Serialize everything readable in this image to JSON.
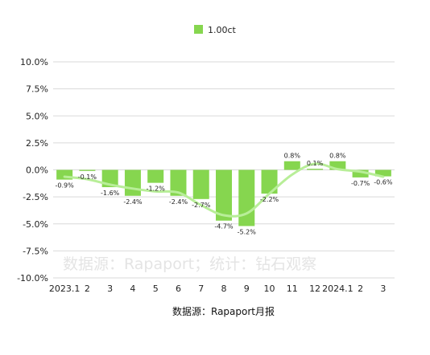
{
  "chart_data": {
    "type": "bar",
    "categories": [
      "2023.1",
      "2",
      "3",
      "4",
      "5",
      "6",
      "7",
      "8",
      "9",
      "10",
      "11",
      "12",
      "2024.1",
      "2",
      "3"
    ],
    "series": [
      {
        "name": "1.00ct",
        "values": [
          -0.9,
          -0.1,
          -1.6,
          -2.4,
          -1.2,
          -2.4,
          -2.7,
          -4.7,
          -5.2,
          -2.2,
          0.8,
          0.1,
          0.8,
          -0.7,
          -0.6
        ],
        "labels": [
          "-0.9%",
          "-0.1%",
          "-1.6%",
          "-2.4%",
          "-1.2%",
          "-2.4%",
          "-2.7%",
          "-4.7%",
          "-5.2%",
          "-2.2%",
          "0.8%",
          "0.1%",
          "0.8%",
          "-0.7%",
          "-0.6%"
        ]
      }
    ],
    "trendline": "smoothed",
    "ylim": [
      -10,
      10
    ],
    "yticks": [
      "10.0%",
      "7.5%",
      "5.0%",
      "2.5%",
      "0.0%",
      "-2.5%",
      "-5.0%",
      "-7.5%",
      "-10.0%"
    ],
    "grid": true,
    "legend_position": "top-center",
    "colors": {
      "bar": "#86d64f",
      "trend": "#b8ee98",
      "grid": "#d9d9d9"
    },
    "watermark": "数据源：Rapaport；统计：钻石观察",
    "source_note": "数据源：Rapaport月报"
  }
}
